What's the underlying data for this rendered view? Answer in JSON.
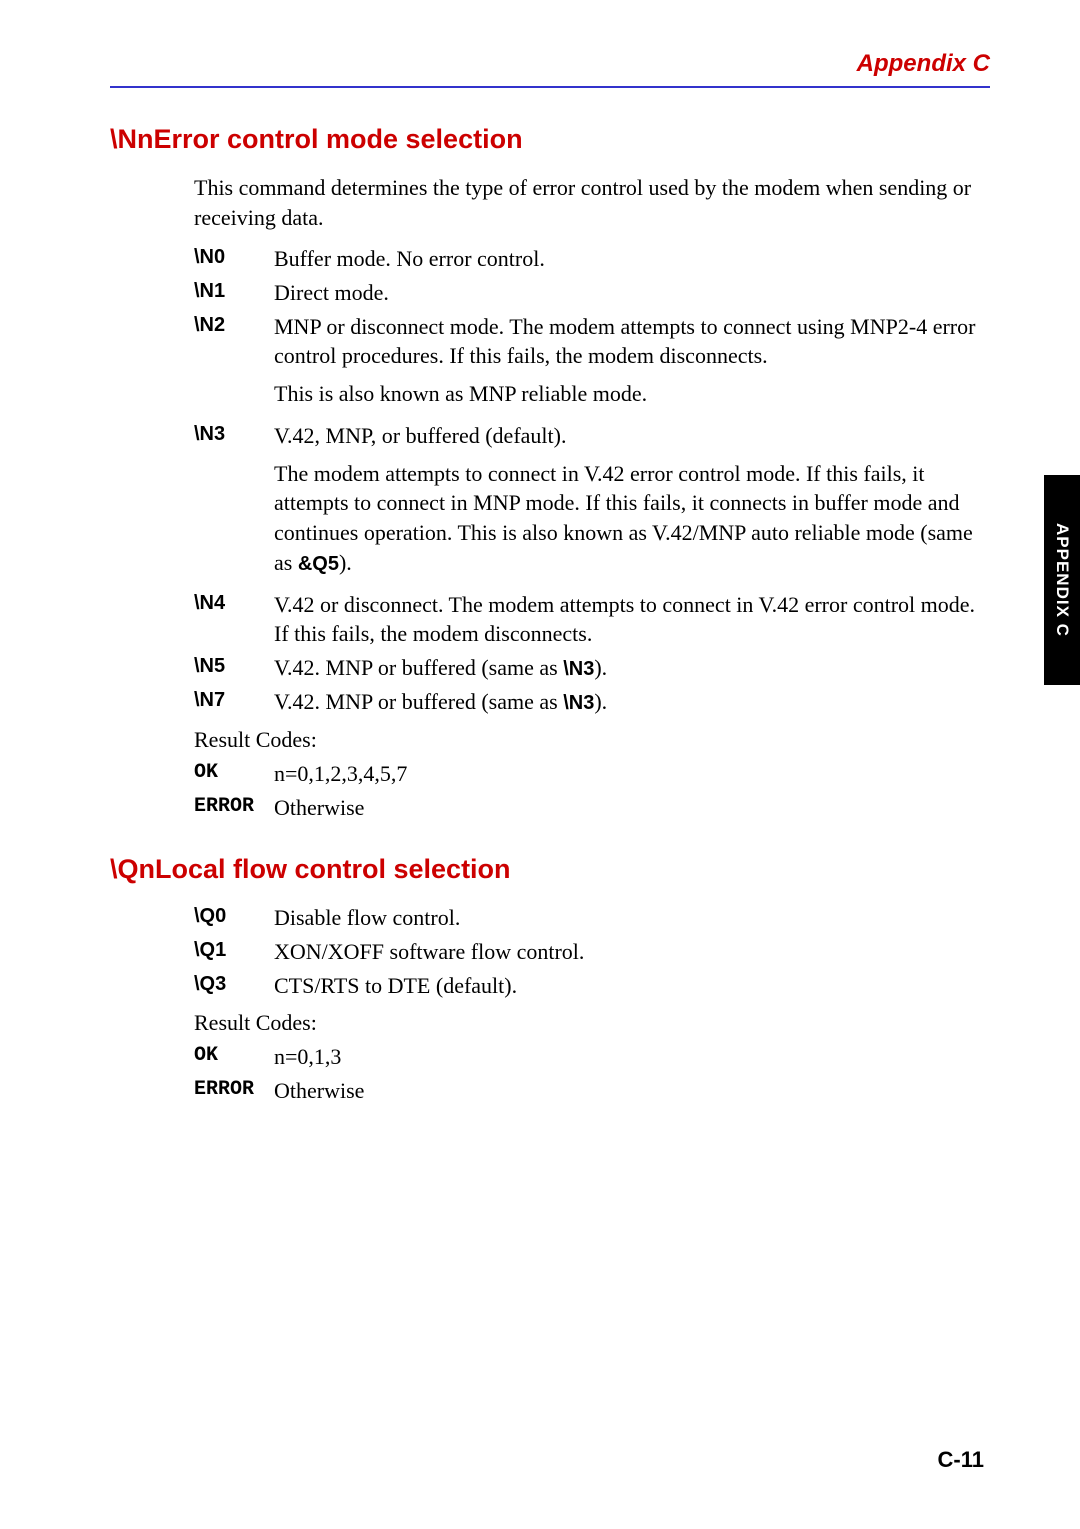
{
  "header": {
    "appendix_label": "Appendix C"
  },
  "side_tab": {
    "label": "APPENDIX C"
  },
  "footer": {
    "page_number": "C-11"
  },
  "section1": {
    "title": "\\NnError control mode selection",
    "intro": "This command determines the type of error control used by the modem when sending or receiving data.",
    "items": [
      {
        "term": "\\N0",
        "desc": "Buffer mode. No error control."
      },
      {
        "term": "\\N1",
        "desc": "Direct mode."
      },
      {
        "term": "\\N2",
        "desc": "MNP or disconnect mode. The modem attempts to connect using MNP2-4 error control procedures. If this fails, the modem disconnects.",
        "desc2": "This is also known as MNP reliable mode."
      },
      {
        "term": "\\N3",
        "desc": "V.42, MNP, or buffered (default).",
        "desc2_pre": "The modem attempts to connect in V.42 error control mode. If this fails, it attempts to connect in MNP mode. If this fails, it connects in buffer mode and continues operation. This is also known as V.42/MNP auto reliable mode (same as ",
        "desc2_bold": "&Q5",
        "desc2_post": ")."
      },
      {
        "term": "\\N4",
        "desc": "V.42 or disconnect. The modem attempts to connect in V.42 error control mode. If this fails, the modem disconnects."
      },
      {
        "term": "\\N5",
        "desc_pre": "V.42. MNP or buffered (same as ",
        "desc_bold": "\\N3",
        "desc_post": ")."
      },
      {
        "term": "\\N7",
        "desc_pre": "V.42. MNP or buffered (same as ",
        "desc_bold": "\\N3",
        "desc_post": ")."
      }
    ],
    "result_label": "Result Codes:",
    "results": [
      {
        "term": "OK",
        "desc": "n=0,1,2,3,4,5,7"
      },
      {
        "term": "ERROR",
        "desc": "Otherwise"
      }
    ]
  },
  "section2": {
    "title": "\\QnLocal flow control selection",
    "items": [
      {
        "term": "\\Q0",
        "desc": "Disable flow control."
      },
      {
        "term": "\\Q1",
        "desc": "XON/XOFF software flow control."
      },
      {
        "term": "\\Q3",
        "desc": "CTS/RTS to DTE (default)."
      }
    ],
    "result_label": "Result Codes:",
    "results": [
      {
        "term": "OK",
        "desc": "n=0,1,3"
      },
      {
        "term": "ERROR",
        "desc": "Otherwise"
      }
    ]
  }
}
